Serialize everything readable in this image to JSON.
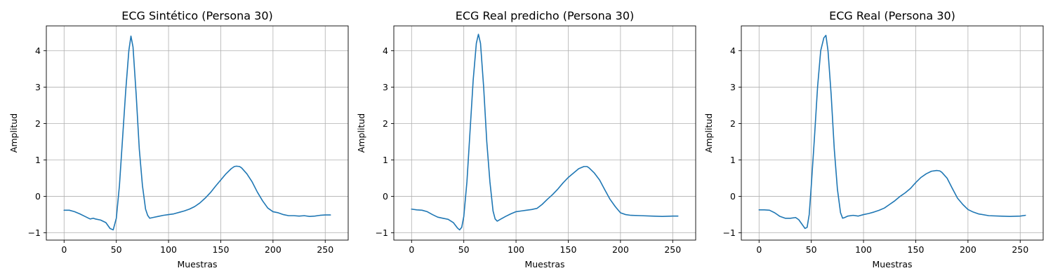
{
  "chart_data": [
    {
      "type": "line",
      "title": "ECG Sintético (Persona 30)",
      "xlabel": "Muestras",
      "ylabel": "Amplitud",
      "xlim": [
        -17,
        272
      ],
      "ylim": [
        -1.2,
        4.68
      ],
      "xticks": [
        0,
        50,
        100,
        150,
        200,
        250
      ],
      "yticks": [
        -1,
        0,
        1,
        2,
        3,
        4
      ],
      "grid": true,
      "line_color": "#1f77b4",
      "series": [
        {
          "x": [
            0,
            5,
            10,
            15,
            20,
            25,
            28,
            30,
            35,
            40,
            44,
            47,
            50,
            53,
            56,
            59,
            62,
            64,
            66,
            69,
            72,
            75,
            78,
            80,
            82,
            85,
            90,
            95,
            100,
            105,
            110,
            115,
            120,
            125,
            130,
            135,
            140,
            145,
            150,
            155,
            160,
            163,
            165,
            168,
            170,
            175,
            180,
            185,
            190,
            195,
            200,
            205,
            210,
            215,
            220,
            225,
            230,
            235,
            240,
            245,
            250,
            255
          ],
          "y": [
            -0.38,
            -0.38,
            -0.42,
            -0.48,
            -0.55,
            -0.62,
            -0.6,
            -0.62,
            -0.65,
            -0.72,
            -0.88,
            -0.92,
            -0.6,
            0.3,
            1.6,
            2.9,
            4.0,
            4.4,
            4.1,
            2.8,
            1.3,
            0.3,
            -0.35,
            -0.52,
            -0.6,
            -0.58,
            -0.55,
            -0.52,
            -0.5,
            -0.48,
            -0.44,
            -0.4,
            -0.35,
            -0.28,
            -0.18,
            -0.05,
            0.1,
            0.28,
            0.45,
            0.62,
            0.76,
            0.82,
            0.83,
            0.82,
            0.78,
            0.62,
            0.4,
            0.12,
            -0.12,
            -0.32,
            -0.42,
            -0.45,
            -0.5,
            -0.53,
            -0.53,
            -0.54,
            -0.53,
            -0.55,
            -0.54,
            -0.52,
            -0.51,
            -0.51
          ]
        }
      ]
    },
    {
      "type": "line",
      "title": "ECG Real predicho (Persona 30)",
      "xlabel": "Muestras",
      "ylabel": "Amplitud",
      "xlim": [
        -17,
        272
      ],
      "ylim": [
        -1.2,
        4.68
      ],
      "xticks": [
        0,
        50,
        100,
        150,
        200,
        250
      ],
      "yticks": [
        -1,
        0,
        1,
        2,
        3,
        4
      ],
      "grid": true,
      "line_color": "#1f77b4",
      "series": [
        {
          "x": [
            0,
            5,
            10,
            15,
            20,
            25,
            30,
            35,
            40,
            44,
            46,
            48,
            50,
            53,
            56,
            59,
            62,
            64,
            66,
            69,
            72,
            75,
            78,
            80,
            82,
            85,
            90,
            95,
            100,
            105,
            110,
            115,
            120,
            125,
            130,
            135,
            140,
            145,
            150,
            155,
            160,
            165,
            168,
            170,
            175,
            180,
            185,
            190,
            195,
            200,
            205,
            210,
            220,
            230,
            240,
            250,
            255
          ],
          "y": [
            -0.35,
            -0.37,
            -0.38,
            -0.42,
            -0.5,
            -0.57,
            -0.6,
            -0.63,
            -0.72,
            -0.87,
            -0.92,
            -0.85,
            -0.55,
            0.4,
            1.8,
            3.2,
            4.2,
            4.45,
            4.2,
            3.0,
            1.5,
            0.4,
            -0.4,
            -0.62,
            -0.68,
            -0.63,
            -0.55,
            -0.48,
            -0.42,
            -0.4,
            -0.38,
            -0.36,
            -0.33,
            -0.22,
            -0.08,
            0.05,
            0.2,
            0.37,
            0.52,
            0.64,
            0.76,
            0.82,
            0.82,
            0.78,
            0.64,
            0.45,
            0.18,
            -0.08,
            -0.28,
            -0.45,
            -0.5,
            -0.52,
            -0.53,
            -0.54,
            -0.55,
            -0.54,
            -0.54
          ]
        }
      ]
    },
    {
      "type": "line",
      "title": "ECG Real (Persona 30)",
      "xlabel": "Muestras",
      "ylabel": "Amplitud",
      "xlim": [
        -17,
        272
      ],
      "ylim": [
        -1.2,
        4.68
      ],
      "xticks": [
        0,
        50,
        100,
        150,
        200,
        250
      ],
      "yticks": [
        -1,
        0,
        1,
        2,
        3,
        4
      ],
      "grid": true,
      "line_color": "#1f77b4",
      "series": [
        {
          "x": [
            0,
            5,
            10,
            15,
            20,
            25,
            30,
            35,
            38,
            41,
            44,
            46,
            48,
            50,
            53,
            56,
            59,
            62,
            64,
            66,
            69,
            72,
            75,
            78,
            80,
            82,
            85,
            90,
            95,
            100,
            105,
            110,
            115,
            120,
            125,
            130,
            135,
            140,
            145,
            150,
            155,
            160,
            165,
            170,
            173,
            175,
            180,
            185,
            190,
            195,
            200,
            205,
            210,
            220,
            230,
            240,
            250,
            255
          ],
          "y": [
            -0.37,
            -0.37,
            -0.38,
            -0.45,
            -0.55,
            -0.6,
            -0.6,
            -0.58,
            -0.64,
            -0.76,
            -0.88,
            -0.85,
            -0.5,
            0.3,
            1.6,
            3.0,
            4.0,
            4.35,
            4.42,
            4.0,
            2.8,
            1.3,
            0.2,
            -0.45,
            -0.6,
            -0.58,
            -0.54,
            -0.52,
            -0.54,
            -0.5,
            -0.47,
            -0.43,
            -0.38,
            -0.32,
            -0.22,
            -0.12,
            0.0,
            0.1,
            0.22,
            0.38,
            0.52,
            0.62,
            0.69,
            0.71,
            0.7,
            0.66,
            0.5,
            0.22,
            -0.05,
            -0.22,
            -0.36,
            -0.43,
            -0.48,
            -0.53,
            -0.54,
            -0.55,
            -0.54,
            -0.52
          ]
        }
      ]
    }
  ]
}
